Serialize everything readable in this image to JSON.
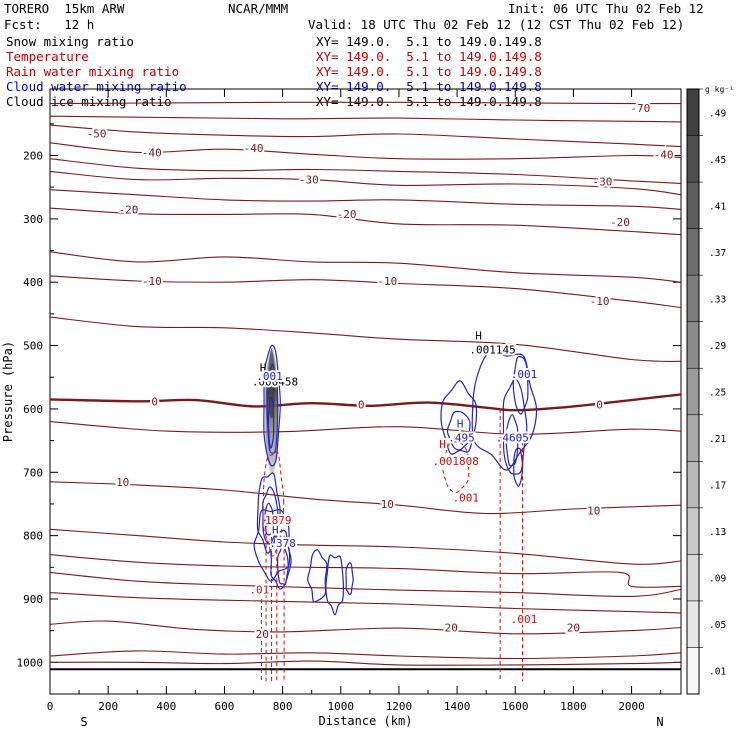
{
  "header": {
    "model": "TORERO  15km ARW",
    "org": "NCAR/MMM",
    "init": "Init: 06 UTC Thu 02 Feb 12",
    "fcst": "Fcst:   12 h",
    "valid": "Valid: 18 UTC Thu 02 Feb 12 (12 CST Thu 02 Feb 12)"
  },
  "fields": [
    {
      "name": "Snow mixing ratio",
      "xy": "XY= 149.0.  5.1 to 149.0.149.8",
      "color": "#000000"
    },
    {
      "name": "Temperature",
      "xy": "XY= 149.0.  5.1 to 149.0.149.8",
      "color": "#c00000"
    },
    {
      "name": "Rain water mixing ratio",
      "xy": "XY= 149.0.  5.1 to 149.0.149.8",
      "color": "#c00000"
    },
    {
      "name": "Cloud water mixing ratio",
      "xy": "XY= 149.0.  5.1 to 149.0.149.8",
      "color": "#0000c0"
    },
    {
      "name": "Cloud ice mixing ratio",
      "xy": "XY= 149.0.  5.1 to 149.0.149.8",
      "color": "#000000"
    }
  ],
  "chart_data": {
    "type": "cross-section contour",
    "xlabel": "Distance (km)",
    "ylabel": "Pressure (hPa)",
    "xlim": [
      0,
      2170
    ],
    "ylim": [
      1050,
      95
    ],
    "xticks": [
      0,
      200,
      400,
      600,
      800,
      1000,
      1200,
      1400,
      1600,
      1800,
      2000
    ],
    "yticks": [
      200,
      300,
      400,
      500,
      600,
      700,
      800,
      900,
      1000
    ],
    "end_labels": {
      "left": "S",
      "right": "N"
    },
    "temperature_labels": [
      {
        "text": "-70",
        "x": 2030,
        "p": 125
      },
      {
        "text": "-50",
        "x": 160,
        "p": 165
      },
      {
        "text": "-40",
        "x": 350,
        "p": 195
      },
      {
        "text": "-40",
        "x": 700,
        "p": 188
      },
      {
        "text": "-40",
        "x": 2110,
        "p": 198
      },
      {
        "text": "-30",
        "x": 890,
        "p": 238
      },
      {
        "text": "-30",
        "x": 1900,
        "p": 241
      },
      {
        "text": "-20",
        "x": 270,
        "p": 285
      },
      {
        "text": "-20",
        "x": 1020,
        "p": 292
      },
      {
        "text": "-20",
        "x": 1960,
        "p": 305
      },
      {
        "text": "-10",
        "x": 350,
        "p": 398
      },
      {
        "text": "-10",
        "x": 1160,
        "p": 398
      },
      {
        "text": "-10",
        "x": 1890,
        "p": 430
      },
      {
        "text": "0",
        "x": 360,
        "p": 588
      },
      {
        "text": "0",
        "x": 1070,
        "p": 593
      },
      {
        "text": "0",
        "x": 1890,
        "p": 593
      },
      {
        "text": "10",
        "x": 250,
        "p": 715
      },
      {
        "text": "10",
        "x": 1160,
        "p": 750
      },
      {
        "text": "10",
        "x": 1870,
        "p": 760
      },
      {
        "text": "20",
        "x": 730,
        "p": 955
      },
      {
        "text": "20",
        "x": 1380,
        "p": 945
      },
      {
        "text": "20",
        "x": 1800,
        "p": 945
      }
    ],
    "temperature_levels": [
      {
        "value": -70,
        "profile": [
          [
            0,
            118
          ],
          [
            400,
            117
          ],
          [
            800,
            116
          ],
          [
            1200,
            116
          ],
          [
            1600,
            117
          ],
          [
            2000,
            118
          ],
          [
            2170,
            118
          ]
        ]
      },
      {
        "value": -60,
        "profile": [
          [
            0,
            138
          ],
          [
            400,
            140
          ],
          [
            800,
            142
          ],
          [
            1200,
            141
          ],
          [
            1600,
            144
          ],
          [
            2000,
            146
          ],
          [
            2170,
            147
          ]
        ]
      },
      {
        "value": -50,
        "profile": [
          [
            0,
            152
          ],
          [
            300,
            163
          ],
          [
            600,
            168
          ],
          [
            900,
            170
          ],
          [
            1200,
            166
          ],
          [
            1600,
            174
          ],
          [
            2000,
            182
          ],
          [
            2170,
            186
          ]
        ]
      },
      {
        "value": -40,
        "profile": [
          [
            0,
            180
          ],
          [
            300,
            195
          ],
          [
            600,
            190
          ],
          [
            900,
            198
          ],
          [
            1200,
            205
          ],
          [
            1600,
            205
          ],
          [
            2000,
            200
          ],
          [
            2170,
            203
          ]
        ]
      },
      {
        "value": -35,
        "profile": [
          [
            0,
            205
          ],
          [
            300,
            220
          ],
          [
            600,
            224
          ],
          [
            900,
            222
          ],
          [
            1200,
            225
          ],
          [
            1600,
            230
          ],
          [
            2000,
            240
          ],
          [
            2170,
            244
          ]
        ]
      },
      {
        "value": -30,
        "profile": [
          [
            0,
            225
          ],
          [
            300,
            238
          ],
          [
            600,
            236
          ],
          [
            900,
            238
          ],
          [
            1200,
            247
          ],
          [
            1600,
            245
          ],
          [
            2000,
            252
          ],
          [
            2170,
            262
          ]
        ]
      },
      {
        "value": -25,
        "profile": [
          [
            0,
            254
          ],
          [
            300,
            262
          ],
          [
            600,
            270
          ],
          [
            900,
            272
          ],
          [
            1200,
            270
          ],
          [
            1600,
            277
          ],
          [
            2000,
            280
          ],
          [
            2170,
            285
          ]
        ]
      },
      {
        "value": -20,
        "profile": [
          [
            0,
            283
          ],
          [
            300,
            292
          ],
          [
            600,
            293
          ],
          [
            900,
            293
          ],
          [
            1200,
            308
          ],
          [
            1600,
            310
          ],
          [
            2000,
            320
          ],
          [
            2170,
            325
          ]
        ]
      },
      {
        "value": -15,
        "profile": [
          [
            0,
            352
          ],
          [
            300,
            368
          ],
          [
            600,
            360
          ],
          [
            900,
            368
          ],
          [
            1200,
            370
          ],
          [
            1600,
            385
          ],
          [
            2000,
            392
          ],
          [
            2170,
            400
          ]
        ]
      },
      {
        "value": -10,
        "profile": [
          [
            0,
            390
          ],
          [
            300,
            398
          ],
          [
            600,
            400
          ],
          [
            900,
            396
          ],
          [
            1200,
            402
          ],
          [
            1600,
            410
          ],
          [
            2000,
            430
          ],
          [
            2170,
            440
          ]
        ]
      },
      {
        "value": -5,
        "profile": [
          [
            0,
            455
          ],
          [
            300,
            470
          ],
          [
            600,
            472
          ],
          [
            900,
            480
          ],
          [
            1200,
            490
          ],
          [
            1600,
            498
          ],
          [
            2000,
            522
          ],
          [
            2170,
            525
          ]
        ]
      },
      {
        "value": 0,
        "profile": [
          [
            0,
            585
          ],
          [
            300,
            588
          ],
          [
            500,
            586
          ],
          [
            700,
            596
          ],
          [
            900,
            591
          ],
          [
            1100,
            595
          ],
          [
            1300,
            590
          ],
          [
            1500,
            598
          ],
          [
            1600,
            602
          ],
          [
            1800,
            596
          ],
          [
            2170,
            577
          ]
        ]
      },
      {
        "value": 5,
        "profile": [
          [
            0,
            620
          ],
          [
            400,
            635
          ],
          [
            800,
            636
          ],
          [
            1200,
            628
          ],
          [
            1600,
            640
          ],
          [
            2000,
            632
          ],
          [
            2170,
            635
          ]
        ]
      },
      {
        "value": 10,
        "profile": [
          [
            0,
            715
          ],
          [
            300,
            720
          ],
          [
            600,
            728
          ],
          [
            900,
            742
          ],
          [
            1200,
            752
          ],
          [
            1500,
            765
          ],
          [
            1800,
            758
          ],
          [
            2170,
            752
          ]
        ]
      },
      {
        "value": 12,
        "profile": [
          [
            0,
            790
          ],
          [
            300,
            800
          ],
          [
            600,
            810
          ],
          [
            900,
            815
          ],
          [
            1200,
            818
          ],
          [
            1600,
            828
          ],
          [
            2000,
            845
          ],
          [
            2170,
            840
          ]
        ]
      },
      {
        "value": 14,
        "profile": [
          [
            0,
            830
          ],
          [
            300,
            842
          ],
          [
            600,
            848
          ],
          [
            900,
            850
          ],
          [
            1200,
            852
          ],
          [
            1600,
            860
          ],
          [
            1960,
            858
          ],
          [
            2000,
            880
          ],
          [
            2170,
            880
          ]
        ]
      },
      {
        "value": 16,
        "profile": [
          [
            0,
            858
          ],
          [
            300,
            872
          ],
          [
            600,
            878
          ],
          [
            900,
            882
          ],
          [
            1200,
            886
          ],
          [
            1600,
            890
          ],
          [
            2000,
            896
          ],
          [
            2170,
            885
          ]
        ]
      },
      {
        "value": 18,
        "profile": [
          [
            0,
            890
          ],
          [
            300,
            898
          ],
          [
            600,
            902
          ],
          [
            900,
            905
          ],
          [
            1200,
            908
          ],
          [
            1600,
            915
          ],
          [
            2000,
            920
          ],
          [
            2170,
            922
          ]
        ]
      },
      {
        "value": 20,
        "profile": [
          [
            0,
            940
          ],
          [
            200,
            935
          ],
          [
            500,
            948
          ],
          [
            800,
            952
          ],
          [
            1200,
            946
          ],
          [
            1600,
            955
          ],
          [
            2000,
            950
          ],
          [
            2170,
            945
          ]
        ]
      },
      {
        "value": 22,
        "profile": [
          [
            0,
            990
          ],
          [
            300,
            982
          ],
          [
            600,
            987
          ],
          [
            900,
            985
          ],
          [
            1200,
            990
          ],
          [
            1600,
            994
          ],
          [
            2000,
            990
          ],
          [
            2170,
            985
          ]
        ]
      },
      {
        "value": 24,
        "profile": [
          [
            0,
            1000
          ],
          [
            300,
            1000
          ],
          [
            600,
            1002
          ],
          [
            900,
            998
          ],
          [
            1200,
            1004
          ],
          [
            1600,
            1004
          ],
          [
            2000,
            1002
          ],
          [
            2170,
            1000
          ]
        ]
      }
    ],
    "surface_p": 1011,
    "snow_maximum": {
      "label": "H",
      "value": ".000458",
      "x": 705,
      "p": 535
    },
    "cloud_ice_maximum": {
      "label": "H",
      "value": ".001145",
      "x": 1460,
      "p": 500
    },
    "cloud_water_labels": [
      {
        "text": ".001",
        "x": 755,
        "p": 548
      },
      {
        "text": ".001",
        "x": 1630,
        "p": 545
      },
      {
        "text": "H",
        "x": 1410,
        "p": 623
      },
      {
        "text": ".495",
        "x": 1415,
        "p": 645
      },
      {
        "text": ".4605",
        "x": 1590,
        "p": 645
      },
      {
        "text": "H",
        "x": 775,
        "p": 790
      },
      {
        "text": ".378",
        "x": 800,
        "p": 812
      }
    ],
    "rain_labels": [
      {
        "text": "H",
        "x": 1350,
        "p": 655
      },
      {
        "text": ".001808",
        "x": 1395,
        "p": 682
      },
      {
        "text": ".001",
        "x": 1430,
        "p": 740
      },
      {
        "text": ".001",
        "x": 1630,
        "p": 932
      },
      {
        "text": ".01",
        "x": 720,
        "p": 885
      },
      {
        "text": "1879",
        "x": 785,
        "p": 775
      }
    ],
    "colorbar": {
      "unit": "g kg⁻¹",
      "labels": [
        ".49",
        ".45",
        ".41",
        ".37",
        ".33",
        ".29",
        ".25",
        ".21",
        ".17",
        ".13",
        ".09",
        ".05",
        ".01"
      ],
      "top_color": "#404040",
      "bottom_color": "#f7f7f7"
    }
  }
}
